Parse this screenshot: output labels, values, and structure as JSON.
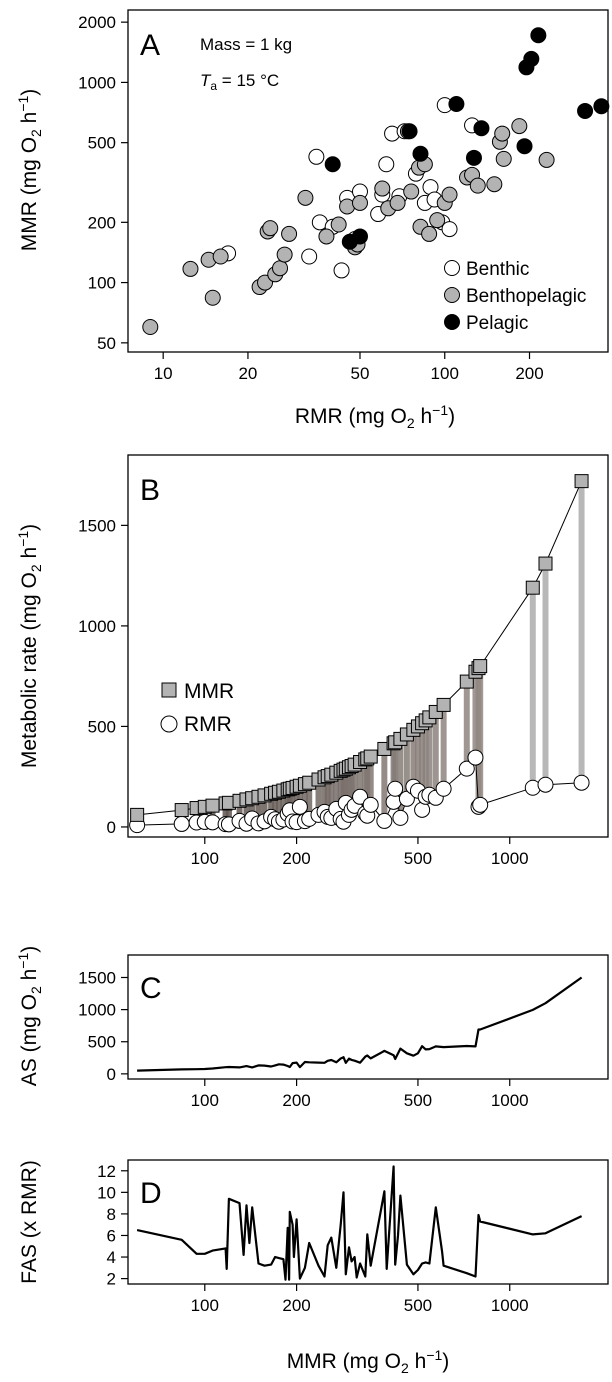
{
  "panels": {
    "A": {
      "letter": "A",
      "mass_label": "Mass = 1 kg",
      "temp_prefix": "T",
      "temp_sub": "a",
      "temp_suffix": " = 15 °C",
      "xlabel_main": "RMR (mg O",
      "xlabel_sub": "2",
      "xlabel_unit": " h",
      "xlabel_sup": "−1",
      "xlabel_close": ")",
      "ylabel_main": "MMR (mg O",
      "ylabel_sub": "2",
      "ylabel_unit": " h",
      "ylabel_sup": "−1",
      "ylabel_close": ")"
    },
    "B": {
      "letter": "B",
      "ylabel_main": "Metabolic rate (mg O",
      "ylabel_sub": "2",
      "ylabel_unit": " h",
      "ylabel_sup": "−1",
      "ylabel_close": ")"
    },
    "C": {
      "letter": "C",
      "ylabel_main": "AS (mg O",
      "ylabel_sub": "2",
      "ylabel_unit": " h",
      "ylabel_sup": "−1",
      "ylabel_close": ")"
    },
    "D": {
      "letter": "D",
      "ylabel": "FAS (x RMR)",
      "xlabel_main": "MMR (mg O",
      "xlabel_sub": "2",
      "xlabel_unit": " h",
      "xlabel_sup": "−1",
      "xlabel_close": ")"
    }
  },
  "chart_data": [
    {
      "panel": "A",
      "type": "scatter",
      "xscale": "log",
      "yscale": "log",
      "xlim": [
        7.5,
        380
      ],
      "ylim": [
        45,
        2300
      ],
      "xticks": [
        10,
        20,
        50,
        100,
        200
      ],
      "yticks": [
        50,
        100,
        200,
        500,
        1000,
        2000
      ],
      "legend": "bottom-right",
      "series": [
        {
          "name": "Benthic",
          "color": "#ffffff",
          "points": [
            [
              17,
              140
            ],
            [
              33,
              135
            ],
            [
              35,
              425
            ],
            [
              36,
              200
            ],
            [
              40,
              190
            ],
            [
              43,
              115
            ],
            [
              45,
              265
            ],
            [
              48,
              165
            ],
            [
              50,
              285
            ],
            [
              58,
              220
            ],
            [
              60,
              275
            ],
            [
              62,
              390
            ],
            [
              65,
              555
            ],
            [
              69,
              270
            ],
            [
              72,
              570
            ],
            [
              79,
              350
            ],
            [
              85,
              250
            ],
            [
              89,
              300
            ],
            [
              92,
              260
            ],
            [
              98,
              200
            ],
            [
              100,
              770
            ],
            [
              104,
              185
            ],
            [
              125,
              610
            ]
          ]
        },
        {
          "name": "Benthopelagic",
          "color": "#b3b3b3",
          "points": [
            [
              9,
              60
            ],
            [
              12.5,
              117
            ],
            [
              14.5,
              130
            ],
            [
              15,
              84
            ],
            [
              16,
              135
            ],
            [
              22,
              95
            ],
            [
              23,
              100
            ],
            [
              23.5,
              180
            ],
            [
              24,
              187
            ],
            [
              25,
              110
            ],
            [
              26,
              118
            ],
            [
              27,
              138
            ],
            [
              28,
              175
            ],
            [
              32,
              265
            ],
            [
              38,
              170
            ],
            [
              42,
              195
            ],
            [
              45,
              240
            ],
            [
              48,
              150
            ],
            [
              49,
              155
            ],
            [
              50,
              250
            ],
            [
              60,
              295
            ],
            [
              63,
              235
            ],
            [
              68,
              250
            ],
            [
              74,
              570
            ],
            [
              76,
              285
            ],
            [
              81,
              375
            ],
            [
              82,
              190
            ],
            [
              85,
              390
            ],
            [
              88,
              175
            ],
            [
              94,
              205
            ],
            [
              100,
              250
            ],
            [
              104,
              275
            ],
            [
              120,
              335
            ],
            [
              125,
              345
            ],
            [
              131,
              305
            ],
            [
              150,
              310
            ],
            [
              157,
              505
            ],
            [
              160,
              555
            ],
            [
              162,
              415
            ],
            [
              184,
              605
            ],
            [
              230,
              410
            ]
          ]
        },
        {
          "name": "Pelagic",
          "color": "#000000",
          "points": [
            [
              40,
              390
            ],
            [
              46,
              160
            ],
            [
              50,
              170
            ],
            [
              75,
              570
            ],
            [
              82,
              440
            ],
            [
              110,
              780
            ],
            [
              127,
              420
            ],
            [
              135,
              590
            ],
            [
              192,
              480
            ],
            [
              195,
              1190
            ],
            [
              203,
              1310
            ],
            [
              215,
              1720
            ],
            [
              315,
              720
            ],
            [
              360,
              760
            ]
          ]
        }
      ]
    },
    {
      "panel": "B",
      "type": "line",
      "xscale": "log",
      "xlim": [
        56,
        2100
      ],
      "ylim": [
        -50,
        1850
      ],
      "xticks": [
        100,
        200,
        500,
        1000
      ],
      "yticks": [
        0,
        500,
        1000,
        1500
      ],
      "legend": "top-left",
      "series": [
        {
          "name": "MMR",
          "marker": "square",
          "color": "#b3b3b3",
          "x": [
            60,
            84,
            94,
            100,
            106,
            117,
            120,
            130,
            137,
            143,
            150,
            157,
            165,
            170,
            175,
            181,
            187,
            190,
            194,
            200,
            205,
            213,
            220,
            236,
            247,
            253,
            260,
            270,
            279,
            285,
            290,
            297,
            303,
            310,
            323,
            336,
            341,
            350,
            388,
            416,
            421,
            438,
            460,
            483,
            500,
            516,
            530,
            545,
            572,
            607,
            723,
            772,
            790,
            800,
            1190,
            1310,
            1720
          ],
          "y": [
            60,
            84,
            94,
            100,
            106,
            117,
            120,
            130,
            137,
            143,
            150,
            157,
            165,
            170,
            175,
            181,
            187,
            190,
            194,
            200,
            205,
            213,
            220,
            236,
            247,
            253,
            260,
            270,
            279,
            285,
            290,
            297,
            303,
            310,
            323,
            336,
            341,
            350,
            388,
            416,
            421,
            438,
            460,
            483,
            500,
            516,
            530,
            545,
            572,
            607,
            723,
            772,
            790,
            800,
            1190,
            1310,
            1720
          ]
        },
        {
          "name": "RMR",
          "marker": "circle",
          "color": "#ffffff",
          "x": [
            60,
            84,
            94,
            100,
            106,
            117,
            120,
            130,
            137,
            143,
            150,
            157,
            165,
            170,
            175,
            181,
            187,
            190,
            194,
            200,
            205,
            213,
            220,
            236,
            247,
            253,
            260,
            270,
            279,
            285,
            290,
            297,
            303,
            310,
            323,
            336,
            341,
            350,
            388,
            416,
            421,
            438,
            460,
            483,
            500,
            516,
            530,
            545,
            572,
            607,
            723,
            772,
            790,
            800,
            1190,
            1310,
            1720
          ],
          "y": [
            9,
            15,
            22,
            25,
            23,
            14,
            13,
            30,
            16,
            42,
            18,
            28,
            50,
            38,
            26,
            37,
            65,
            83,
            27,
            24,
            100,
            29,
            40,
            60,
            75,
            50,
            45,
            90,
            40,
            26,
            120,
            60,
            85,
            105,
            150,
            67,
            56,
            110,
            30,
            125,
            190,
            45,
            140,
            200,
            180,
            85,
            150,
            160,
            145,
            190,
            290,
            345,
            100,
            110,
            195,
            210,
            220
          ]
        }
      ]
    },
    {
      "panel": "C",
      "type": "line",
      "xscale": "log",
      "xlim": [
        56,
        2100
      ],
      "ylim": [
        -80,
        1850
      ],
      "xticks": [
        100,
        200,
        500,
        1000
      ],
      "yticks": [
        0,
        500,
        1000,
        1500
      ],
      "series": [
        {
          "name": "AS",
          "x": [
            60,
            84,
            94,
            100,
            106,
            117,
            120,
            130,
            137,
            143,
            150,
            157,
            165,
            170,
            175,
            181,
            187,
            190,
            194,
            200,
            205,
            213,
            220,
            236,
            247,
            253,
            260,
            270,
            279,
            285,
            290,
            297,
            303,
            310,
            323,
            336,
            341,
            350,
            388,
            416,
            421,
            438,
            460,
            483,
            500,
            516,
            530,
            545,
            572,
            607,
            723,
            772,
            790,
            800,
            1190,
            1310,
            1720
          ],
          "y": [
            51,
            69,
            72,
            75,
            83,
            103,
            107,
            100,
            121,
            101,
            132,
            129,
            115,
            132,
            149,
            144,
            122,
            107,
            167,
            176,
            105,
            184,
            180,
            176,
            172,
            203,
            215,
            180,
            239,
            259,
            170,
            237,
            218,
            205,
            173,
            269,
            285,
            240,
            358,
            291,
            231,
            393,
            320,
            283,
            320,
            431,
            380,
            385,
            427,
            417,
            433,
            427,
            690,
            690,
            995,
            1100,
            1500
          ]
        }
      ]
    },
    {
      "panel": "D",
      "type": "line",
      "xscale": "log",
      "xlim": [
        56,
        2100
      ],
      "ylim": [
        1.5,
        13
      ],
      "xticks": [
        100,
        200,
        500,
        1000
      ],
      "yticks": [
        2,
        4,
        6,
        8,
        10,
        12
      ],
      "series": [
        {
          "name": "FAS",
          "x": [
            60,
            84,
            94,
            100,
            106,
            117,
            118,
            120,
            130,
            134,
            137,
            140,
            143,
            150,
            157,
            165,
            170,
            175,
            181,
            184,
            187,
            189,
            190,
            194,
            196,
            200,
            205,
            213,
            220,
            236,
            247,
            253,
            260,
            270,
            279,
            285,
            290,
            297,
            303,
            310,
            315,
            323,
            336,
            341,
            350,
            388,
            395,
            416,
            421,
            430,
            438,
            460,
            483,
            500,
            516,
            530,
            545,
            572,
            600,
            607,
            723,
            772,
            790,
            800,
            1190,
            1310,
            1720
          ],
          "y": [
            6.5,
            5.6,
            4.3,
            4.3,
            4.6,
            4.8,
            2.9,
            9.4,
            9.0,
            4.2,
            8.8,
            5.3,
            8.6,
            3.4,
            3.2,
            3.3,
            4.0,
            3.9,
            3.8,
            1.9,
            6.7,
            1.9,
            8.2,
            7.0,
            4.0,
            7.5,
            2.0,
            3.0,
            5.3,
            3.2,
            2.2,
            5.1,
            5.8,
            3.0,
            7.0,
            10.0,
            2.4,
            4.9,
            3.6,
            4.0,
            2.1,
            3.4,
            2.2,
            6.1,
            3.2,
            10.1,
            2.9,
            12.4,
            3.3,
            6.0,
            9.7,
            3.3,
            2.4,
            2.8,
            3.4,
            3.5,
            3.4,
            8.6,
            4.5,
            3.2,
            2.5,
            2.2,
            7.9,
            7.3,
            6.1,
            6.2,
            7.8
          ]
        }
      ]
    }
  ]
}
